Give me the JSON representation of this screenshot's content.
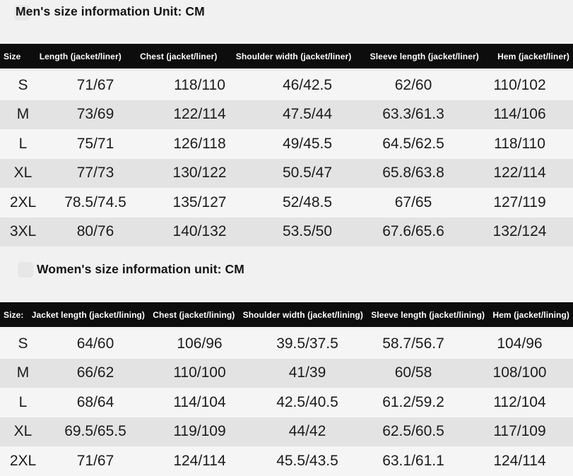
{
  "colors": {
    "page_background": "#f1f1f1",
    "header_bar": "#0d0d0d",
    "header_text": "#ffffff",
    "row_light": "#f5f5f5",
    "row_dark": "#e3e3e3",
    "body_text": "#1c1c1c"
  },
  "icons": {
    "mens_title_badge": "rounded-square-watermark",
    "womens_title_badge": "rounded-square-watermark"
  },
  "mens": {
    "title": "Men's size information Unit: CM",
    "columns": [
      "Size",
      "Length (jacket/liner)",
      "Chest (jacket/liner)",
      "Shoulder width (jacket/liner)",
      "Sleeve length (jacket/liner)",
      "Hem (jacket/liner)"
    ],
    "rows": [
      [
        "S",
        "71/67",
        "118/110",
        "46/42.5",
        "62/60",
        "110/102"
      ],
      [
        "M",
        "73/69",
        "122/114",
        "47.5/44",
        "63.3/61.3",
        "114/106"
      ],
      [
        "L",
        "75/71",
        "126/118",
        "49/45.5",
        "64.5/62.5",
        "118/110"
      ],
      [
        "XL",
        "77/73",
        "130/122",
        "50.5/47",
        "65.8/63.8",
        "122/114"
      ],
      [
        "2XL",
        "78.5/74.5",
        "135/127",
        "52/48.5",
        "67/65",
        "127/119"
      ],
      [
        "3XL",
        "80/76",
        "140/132",
        "53.5/50",
        "67.6/65.6",
        "132/124"
      ]
    ]
  },
  "womens": {
    "title": "Women's size information unit: CM",
    "columns": [
      "Size:",
      "Jacket length (jacket/lining)",
      "Chest (jacket/lining)",
      "Shoulder width (jacket/lining)",
      "Sleeve length (jacket/lining)",
      "Hem (jacket/lining)"
    ],
    "rows": [
      [
        "S",
        "64/60",
        "106/96",
        "39.5/37.5",
        "58.7/56.7",
        "104/96"
      ],
      [
        "M",
        "66/62",
        "110/100",
        "41/39",
        "60/58",
        "108/100"
      ],
      [
        "L",
        "68/64",
        "114/104",
        "42.5/40.5",
        "61.2/59.2",
        "112/104"
      ],
      [
        "XL",
        "69.5/65.5",
        "119/109",
        "44/42",
        "62.5/60.5",
        "117/109"
      ],
      [
        "2XL",
        "71/67",
        "124/114",
        "45.5/43.5",
        "63.1/61.1",
        "124/114"
      ]
    ]
  }
}
